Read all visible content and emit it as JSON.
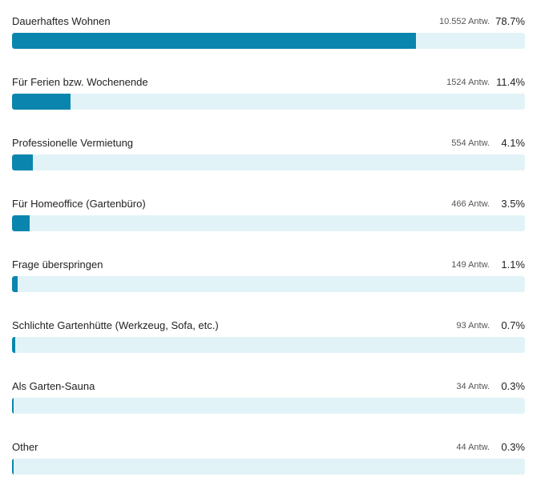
{
  "colors": {
    "bar": "#0a86ae",
    "track": "#e2f3f7"
  },
  "chart_data": {
    "type": "bar",
    "orientation": "horizontal",
    "xlim": [
      0,
      100
    ],
    "categories": [
      "Dauerhaftes Wohnen",
      "Für Ferien bzw. Wochenende",
      "Professionelle Vermietung",
      "Für Homeoffice (Gartenbüro)",
      "Frage überspringen",
      "Schlichte Gartenhütte (Werkzeug, Sofa, etc.)",
      "Als Garten-Sauna",
      "Other"
    ],
    "counts": [
      "10.552 Antw.",
      "1524 Antw.",
      "554 Antw.",
      "466 Antw.",
      "149 Antw.",
      "93 Antw.",
      "34 Antw.",
      "44 Antw."
    ],
    "percent_labels": [
      "78.7%",
      "11.4%",
      "4.1%",
      "3.5%",
      "1.1%",
      "0.7%",
      "0.3%",
      "0.3%"
    ],
    "values": [
      78.7,
      11.4,
      4.1,
      3.5,
      1.1,
      0.7,
      0.3,
      0.3
    ]
  }
}
